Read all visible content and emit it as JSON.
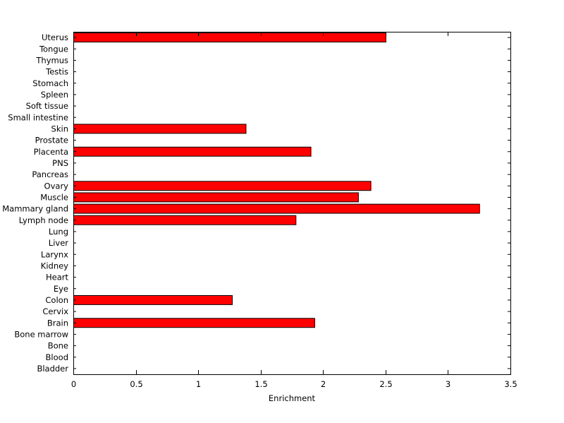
{
  "figure": {
    "background_color": "#ffffff",
    "axis_color": "#000000"
  },
  "chart_data": {
    "type": "bar",
    "orientation": "horizontal",
    "title": "",
    "xlabel": "Enrichment",
    "ylabel": "",
    "xlim": [
      0,
      3.5
    ],
    "xticks": [
      0,
      0.5,
      1,
      1.5,
      2,
      2.5,
      3,
      3.5
    ],
    "xtick_labels": [
      "0",
      "0.5",
      "1",
      "1.5",
      "2",
      "2.5",
      "3",
      "3.5"
    ],
    "grid": false,
    "legend": "none",
    "bar_color": "#ff0000",
    "bar_edge_color": "#000000",
    "categories": [
      "Bladder",
      "Blood",
      "Bone",
      "Bone marrow",
      "Brain",
      "Cervix",
      "Colon",
      "Eye",
      "Heart",
      "Kidney",
      "Larynx",
      "Liver",
      "Lung",
      "Lymph node",
      "Mammary gland",
      "Muscle",
      "Ovary",
      "Pancreas",
      "PNS",
      "Placenta",
      "Prostate",
      "Skin",
      "Small intestine",
      "Soft tissue",
      "Spleen",
      "Stomach",
      "Testis",
      "Thymus",
      "Tongue",
      "Uterus"
    ],
    "values": [
      0,
      0,
      0,
      0,
      1.93,
      0,
      1.27,
      0,
      0,
      0,
      0,
      0,
      0,
      1.78,
      3.25,
      2.28,
      2.38,
      0,
      0,
      1.9,
      0,
      1.38,
      0,
      0,
      0,
      0,
      0,
      0,
      0,
      2.5
    ]
  }
}
